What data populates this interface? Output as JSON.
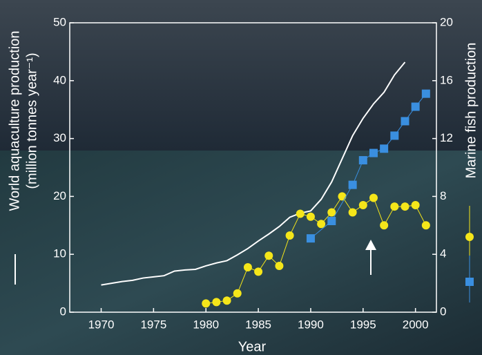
{
  "chart_data": {
    "type": "line",
    "x_label": "Year",
    "y_label": [
      "World aquaculture production",
      "(million tonnes year⁻¹)"
    ],
    "y2_label": "Marine fish production",
    "xlim": [
      1967,
      2002
    ],
    "xticks": [
      1970,
      1975,
      1980,
      1985,
      1990,
      1995,
      2000
    ],
    "ylim": [
      0,
      50
    ],
    "yticks": [
      0,
      10,
      20,
      30,
      40,
      50
    ],
    "y2lim": [
      0,
      20
    ],
    "y2ticks": [
      0,
      4,
      8,
      12,
      16,
      20
    ],
    "series": [
      {
        "color": "#ffffff",
        "marker": "none",
        "axis": "y",
        "x": [
          1970,
          1971,
          1972,
          1973,
          1974,
          1975,
          1976,
          1977,
          1978,
          1979,
          1980,
          1981,
          1982,
          1983,
          1984,
          1985,
          1986,
          1987,
          1988,
          1989,
          1990,
          1991,
          1992,
          1993,
          1994,
          1995,
          1996,
          1997,
          1998,
          1999
        ],
        "values": [
          4.7,
          5.0,
          5.3,
          5.5,
          5.9,
          6.1,
          6.3,
          7.1,
          7.3,
          7.4,
          8.0,
          8.5,
          8.9,
          9.9,
          11.0,
          12.3,
          13.5,
          14.8,
          16.4,
          17.1,
          17.5,
          19.5,
          22.5,
          26.5,
          30.5,
          33.5,
          36.0,
          38.0,
          41.0,
          43.2
        ]
      },
      {
        "color": "#f5e61a",
        "marker": "circle",
        "axis": "y2",
        "x": [
          1980,
          1981,
          1982,
          1983,
          1984,
          1985,
          1986,
          1987,
          1988,
          1989,
          1990,
          1991,
          1992,
          1993,
          1994,
          1995,
          1996,
          1997,
          1998,
          1999,
          2000,
          2001
        ],
        "values": [
          0.6,
          0.7,
          0.8,
          1.3,
          3.1,
          2.8,
          3.9,
          3.2,
          5.3,
          6.8,
          6.6,
          6.1,
          6.9,
          8.0,
          6.9,
          7.4,
          7.9,
          6.0,
          7.3,
          7.3,
          7.4,
          6.0
        ]
      },
      {
        "color": "#3a8fe0",
        "marker": "square",
        "axis": "y2",
        "x": [
          1990,
          1992,
          1994,
          1995,
          1996,
          1997,
          1998,
          1999,
          2000,
          2001
        ],
        "values": [
          5.1,
          6.3,
          8.8,
          10.5,
          11.0,
          11.3,
          12.2,
          13.2,
          14.2,
          15.1
        ]
      }
    ]
  }
}
